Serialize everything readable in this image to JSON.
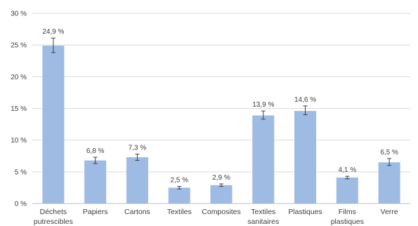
{
  "chart_data": {
    "type": "bar",
    "title": "",
    "xlabel": "",
    "ylabel": "",
    "ylim": [
      0,
      30
    ],
    "y_ticks": [
      "0 %",
      "5 %",
      "10 %",
      "15 %",
      "20 %",
      "25 %",
      "30 %"
    ],
    "y_tick_values": [
      0,
      5,
      10,
      15,
      20,
      25,
      30
    ],
    "grid": true,
    "bar_color": "#9dbbe3",
    "categories": [
      [
        "Déchets",
        "putrescibles"
      ],
      [
        "Papiers"
      ],
      [
        "Cartons"
      ],
      [
        "Textiles"
      ],
      [
        "Composites"
      ],
      [
        "Textiles",
        "sanitaires"
      ],
      [
        "Plastiques"
      ],
      [
        "Films",
        "plastiques"
      ],
      [
        "Verre"
      ]
    ],
    "values": [
      24.9,
      6.8,
      7.3,
      2.5,
      2.9,
      13.9,
      14.6,
      4.1,
      6.5
    ],
    "value_labels": [
      "24,9 %",
      "6,8 %",
      "7,3 %",
      "2,5 %",
      "2,9 %",
      "13,9 %",
      "14,6 %",
      "4,1 %",
      "6,5 %"
    ],
    "error_low": [
      23.8,
      6.3,
      6.8,
      2.3,
      2.7,
      13.3,
      14.0,
      3.9,
      6.0
    ],
    "error_high": [
      26.1,
      7.3,
      7.8,
      2.7,
      3.1,
      14.6,
      15.4,
      4.3,
      7.1
    ]
  }
}
